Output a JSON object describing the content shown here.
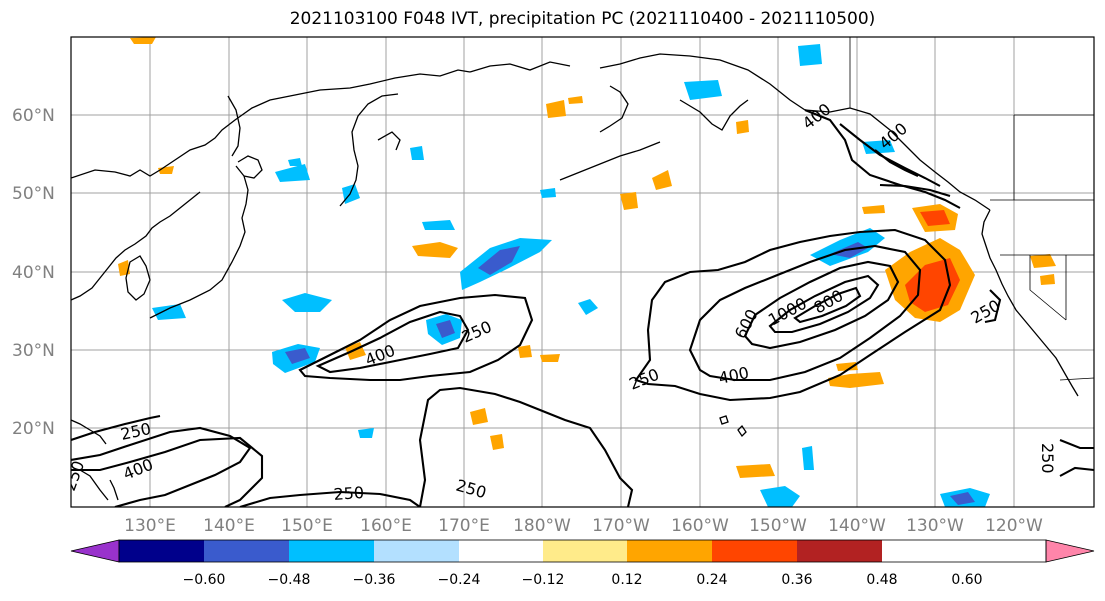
{
  "title": "2021103100 F048 IVT, precipitation PC (2021110400 - 2021110500)",
  "axes": {
    "lat_labels": [
      "20°N",
      "30°N",
      "40°N",
      "50°N",
      "60°N"
    ],
    "lon_labels": [
      "130°E",
      "140°E",
      "150°E",
      "160°E",
      "170°E",
      "180°W",
      "170°W",
      "160°W",
      "150°W",
      "140°W",
      "130°W",
      "120°W"
    ]
  },
  "contours": {
    "labels": [
      "400",
      "250",
      "400",
      "250",
      "250",
      "250",
      "250",
      "400",
      "600",
      "1000",
      "800",
      "400",
      "250",
      "250",
      "400",
      "250"
    ]
  },
  "colorbar": {
    "colors": [
      "#9932cc",
      "#00008b",
      "#3a5bcd",
      "#00bfff",
      "#b3e0ff",
      "#ffffff",
      "#ffeb8a",
      "#ffa500",
      "#ff4500",
      "#b22222",
      "#ff85aa"
    ],
    "tick_labels": [
      "−0.60",
      "−0.48",
      "−0.36",
      "−0.24",
      "−0.12",
      "0.12",
      "0.24",
      "0.36",
      "0.48",
      "0.60"
    ]
  }
}
